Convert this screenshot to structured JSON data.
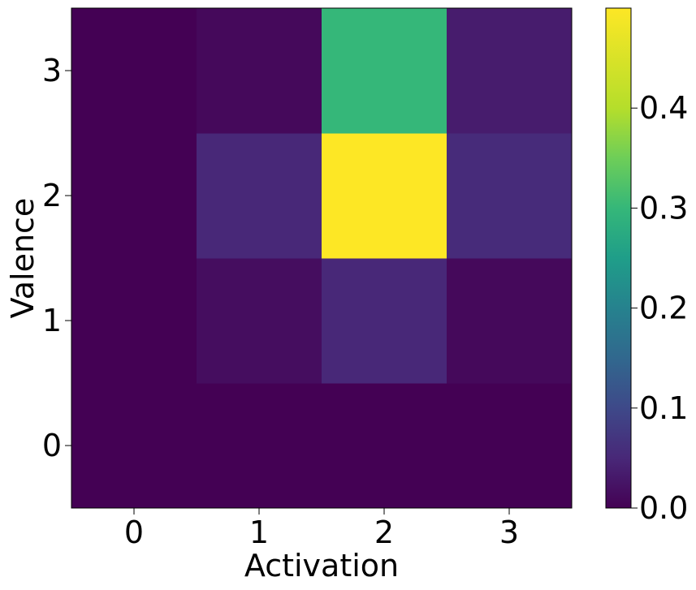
{
  "chart_data": {
    "type": "heatmap",
    "xlabel": "Activation",
    "ylabel": "Valence",
    "x_categories": [
      "0",
      "1",
      "2",
      "3"
    ],
    "y_categories": [
      "0",
      "1",
      "2",
      "3"
    ],
    "values": [
      [
        0.0,
        0.0,
        0.0,
        0.0
      ],
      [
        0.0,
        0.015,
        0.05,
        0.01
      ],
      [
        0.0,
        0.05,
        0.5,
        0.055
      ],
      [
        0.0,
        0.01,
        0.3,
        0.035
      ]
    ],
    "values_layout": "rows are valence 0..3 (bottom to top), columns are activation 0..3",
    "colormap": "viridis",
    "colorbar": {
      "vmin": 0.0,
      "vmax": 0.5,
      "ticks": [
        0.0,
        0.1,
        0.2,
        0.3,
        0.4
      ],
      "tick_labels": [
        "0.0",
        "0.1",
        "0.2",
        "0.3",
        "0.4"
      ]
    }
  }
}
